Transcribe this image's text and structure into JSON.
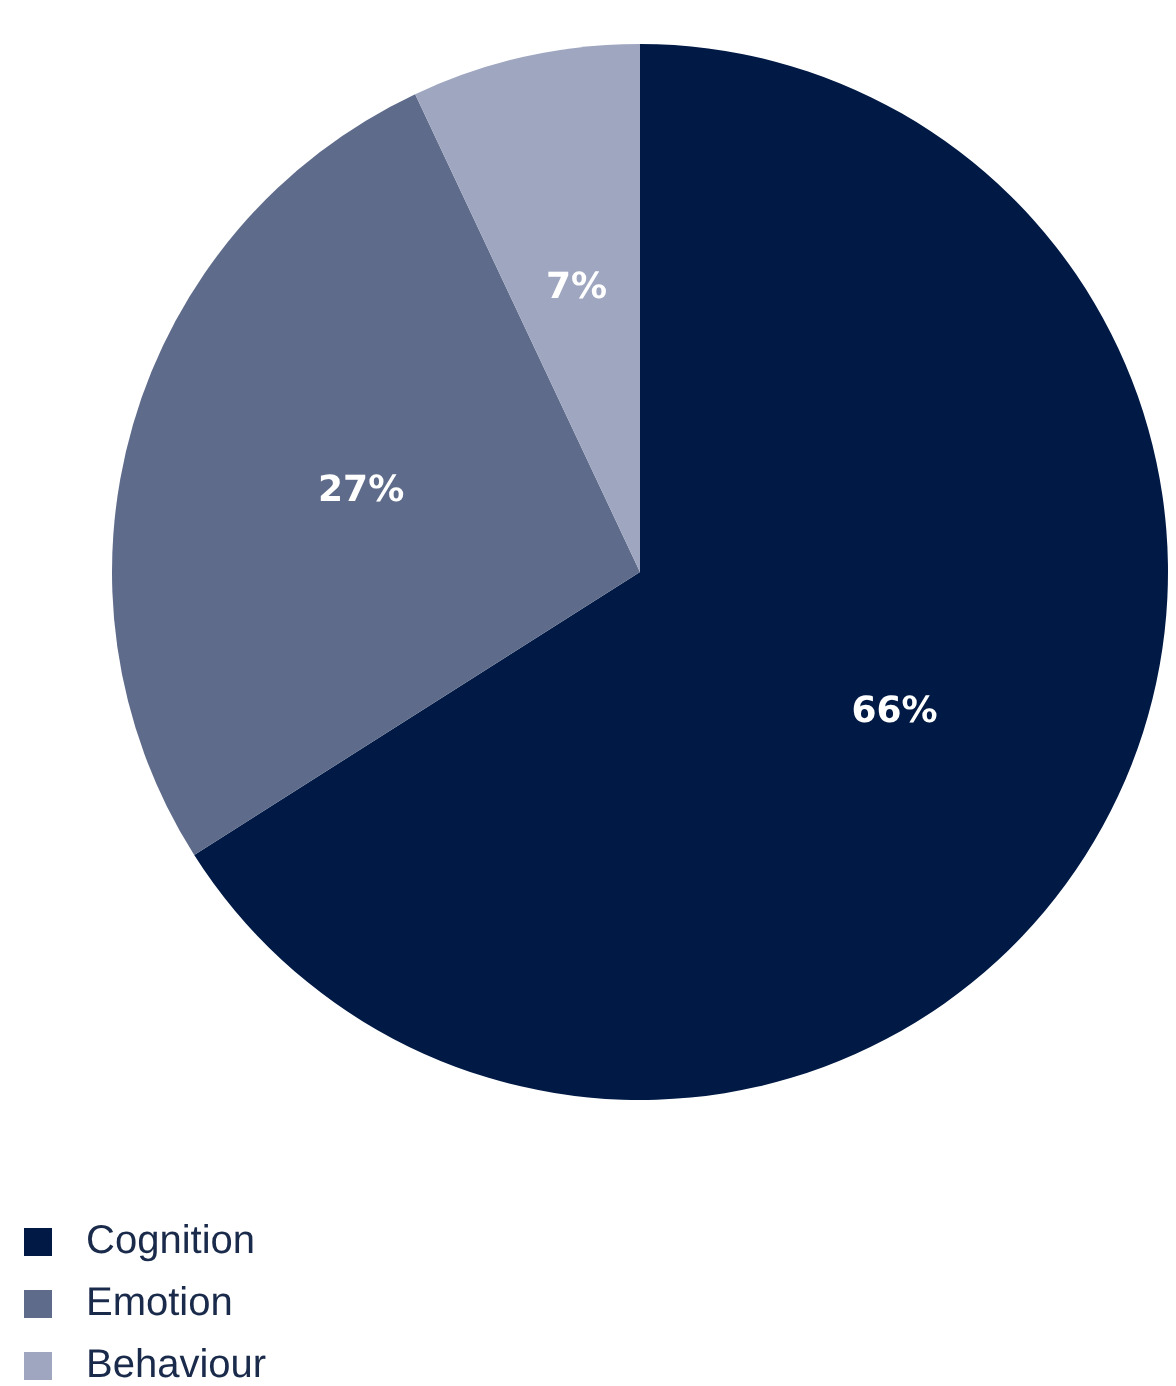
{
  "chart_data": {
    "type": "pie",
    "categories": [
      "Cognition",
      "Emotion",
      "Behaviour"
    ],
    "values": [
      66,
      27,
      7
    ],
    "colors": [
      "#001a45",
      "#5e6b8a",
      "#9fa6c0"
    ],
    "value_labels": [
      "66%",
      "27%",
      "7%"
    ],
    "legend": "bottom left"
  }
}
